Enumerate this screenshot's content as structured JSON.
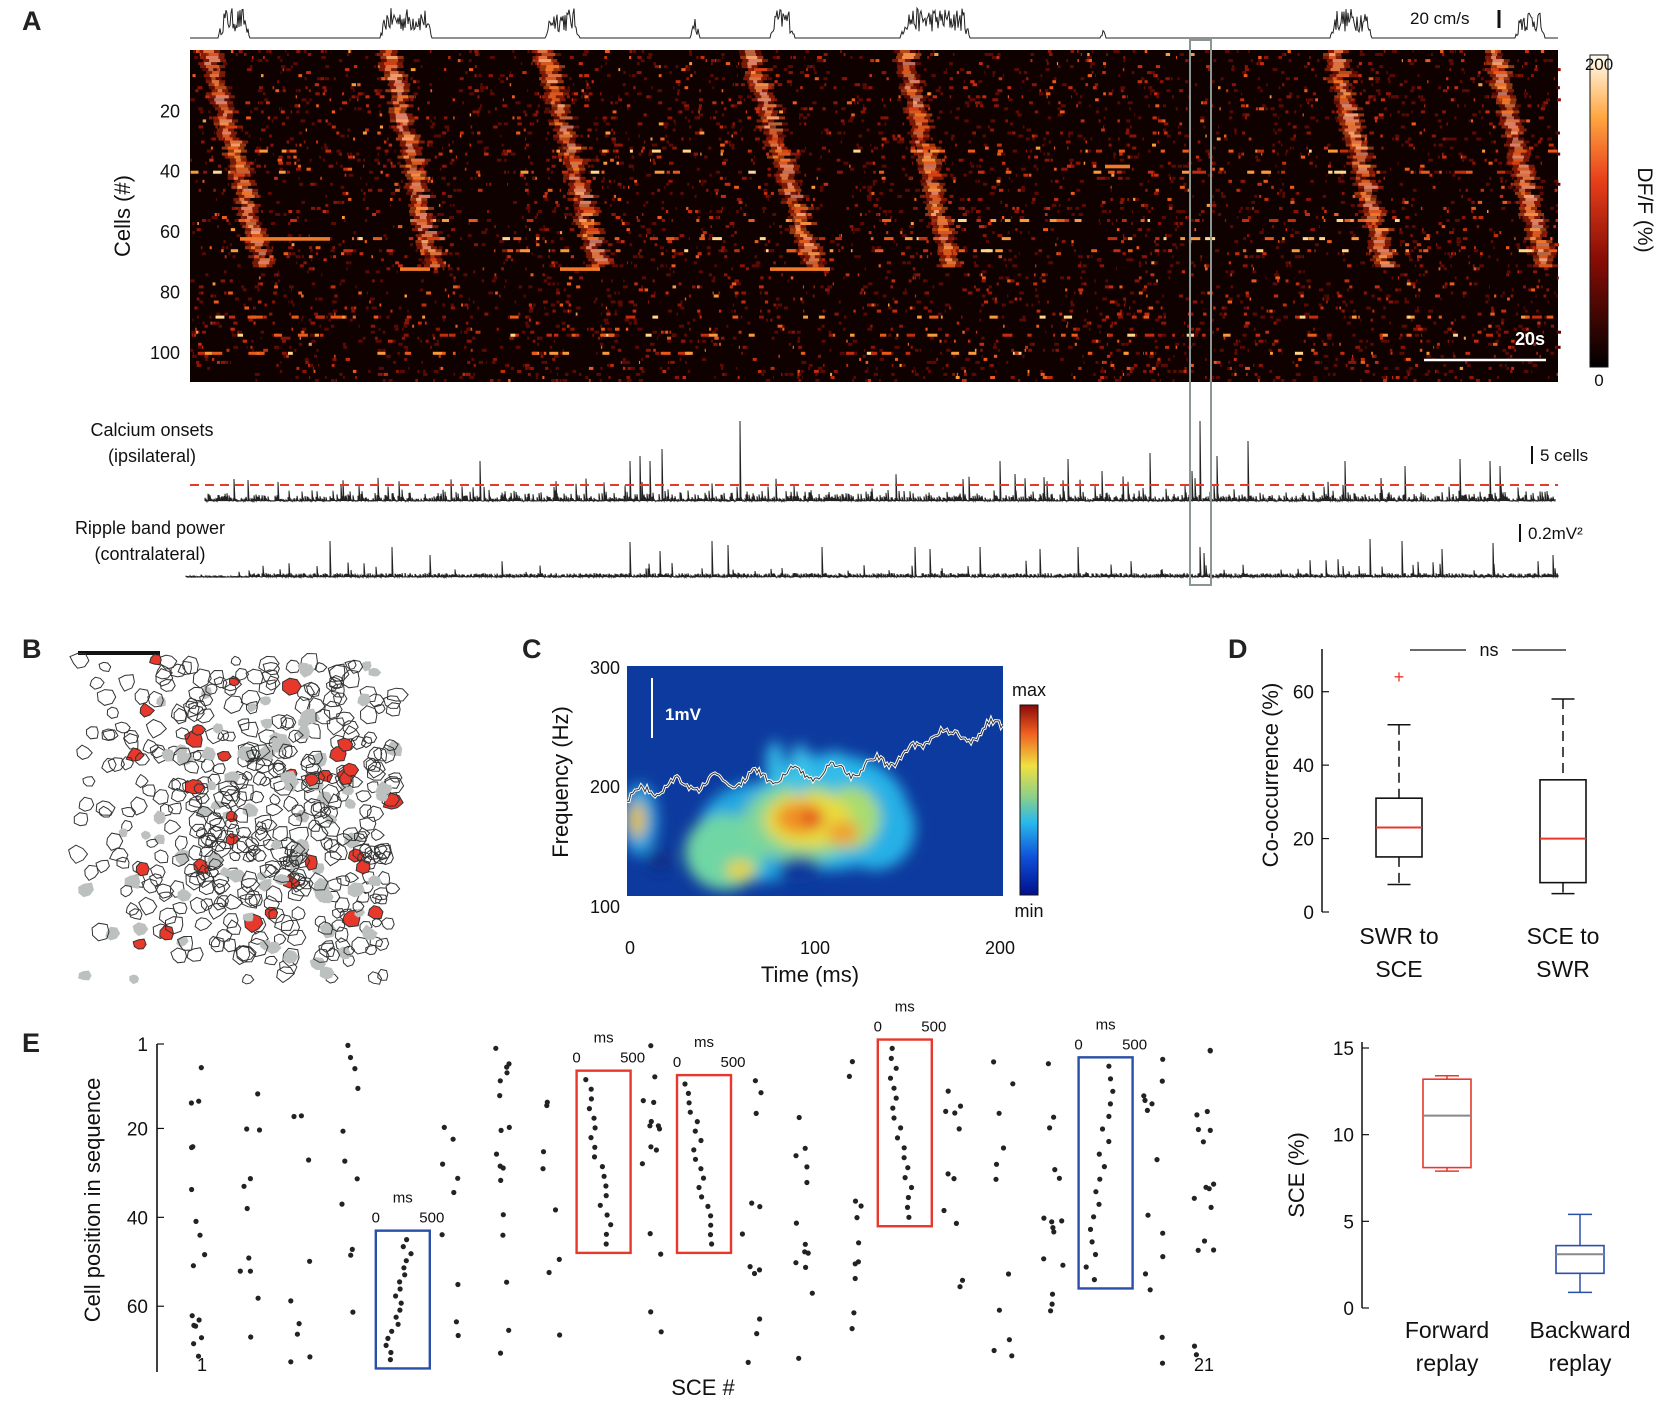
{
  "panel_letters": [
    "A",
    "B",
    "C",
    "D",
    "E"
  ],
  "panel_a": {
    "speed_scale": "20 cm/s",
    "ylabel": "Cells (#)",
    "yticks": [
      "20",
      "40",
      "60",
      "80",
      "100"
    ],
    "colorbar_label": "DF/F (%)",
    "colorbar_max": "200",
    "colorbar_min": "0",
    "time_scale": "20s",
    "onsets_label_1": "Calcium onsets",
    "onsets_label_2": "(ipsilateral)",
    "onsets_scale": "5 cells",
    "ripple_label_1": "Ripple band power",
    "ripple_label_2": "(contralateral)",
    "ripple_scale": "0.2mV²",
    "colors": {
      "threshold": "#e8382c",
      "box": "#8a9694",
      "trace": "#222222"
    }
  },
  "panel_b": {
    "colors": {
      "active": "#e8382c",
      "inactive": "#bcc1bf",
      "outline": "#333333"
    }
  },
  "panel_c": {
    "ylabel": "Frequency (Hz)",
    "xlabel": "Time (ms)",
    "yticks": [
      "300",
      "200",
      "100"
    ],
    "xticks": [
      "0",
      "100",
      "200"
    ],
    "colorbar_max": "max",
    "colorbar_min": "min",
    "lfp_scale": "1mV"
  },
  "chart_data": [
    {
      "type": "box",
      "panel": "D",
      "ylabel": "Co-occurrence (%)",
      "ylim": [
        0,
        70
      ],
      "yticks": [
        "0",
        "20",
        "40",
        "60"
      ],
      "significance": "ns",
      "categories": [
        "SWR to SCE",
        "SCE to SWR"
      ],
      "category_lines": [
        [
          "SWR to",
          "SCE"
        ],
        [
          "SCE to",
          "SWR"
        ]
      ],
      "boxes": [
        {
          "min": 7.5,
          "q1": 15,
          "median": 23,
          "q3": 31,
          "max": 51,
          "outliers": [
            64
          ]
        },
        {
          "min": 5,
          "q1": 8,
          "median": 20,
          "q3": 36,
          "max": 58,
          "outliers": []
        }
      ],
      "colors": {
        "median": "#e8382c",
        "box": "#111111"
      }
    },
    {
      "type": "box",
      "panel": "E-right",
      "ylabel": "SCE (%)",
      "ylim": [
        0,
        15
      ],
      "yticks": [
        "0",
        "5",
        "10",
        "15"
      ],
      "categories": [
        "Forward replay",
        "Backward replay"
      ],
      "category_lines": [
        [
          "Forward",
          "replay"
        ],
        [
          "Backward",
          "replay"
        ]
      ],
      "boxes": [
        {
          "min": 7.9,
          "q1": 8.1,
          "median": 11.1,
          "q3": 13.2,
          "max": 13.4
        },
        {
          "min": 0.9,
          "q1": 2.0,
          "median": 3.1,
          "q3": 3.6,
          "max": 5.4
        }
      ],
      "colors": [
        "#e8382c",
        "#2a4fa8"
      ],
      "median_color": "#888888"
    },
    {
      "type": "scatter",
      "panel": "E",
      "ylabel": "Cell position in sequence",
      "xlabel": "SCE #",
      "yticks": [
        "1",
        "20",
        "40",
        "60"
      ],
      "ylim": [
        1,
        73
      ],
      "first_sce": "1",
      "last_sce": "21",
      "window_ms_start": "0",
      "window_ms_end": "500",
      "window_unit": "ms",
      "boxes": [
        {
          "sce": 5,
          "type": "backward",
          "y_top": 43,
          "y_bottom": 74
        },
        {
          "sce": 9,
          "type": "forward",
          "y_top": 7,
          "y_bottom": 48
        },
        {
          "sce": 11,
          "type": "forward",
          "y_top": 8,
          "y_bottom": 48
        },
        {
          "sce": 15,
          "type": "forward",
          "y_top": 0,
          "y_bottom": 42
        },
        {
          "sce": 19,
          "type": "backward",
          "y_top": 4,
          "y_bottom": 56
        }
      ],
      "colors": {
        "forward": "#e8382c",
        "backward": "#2a4fa8",
        "dots": "#222222"
      }
    }
  ]
}
